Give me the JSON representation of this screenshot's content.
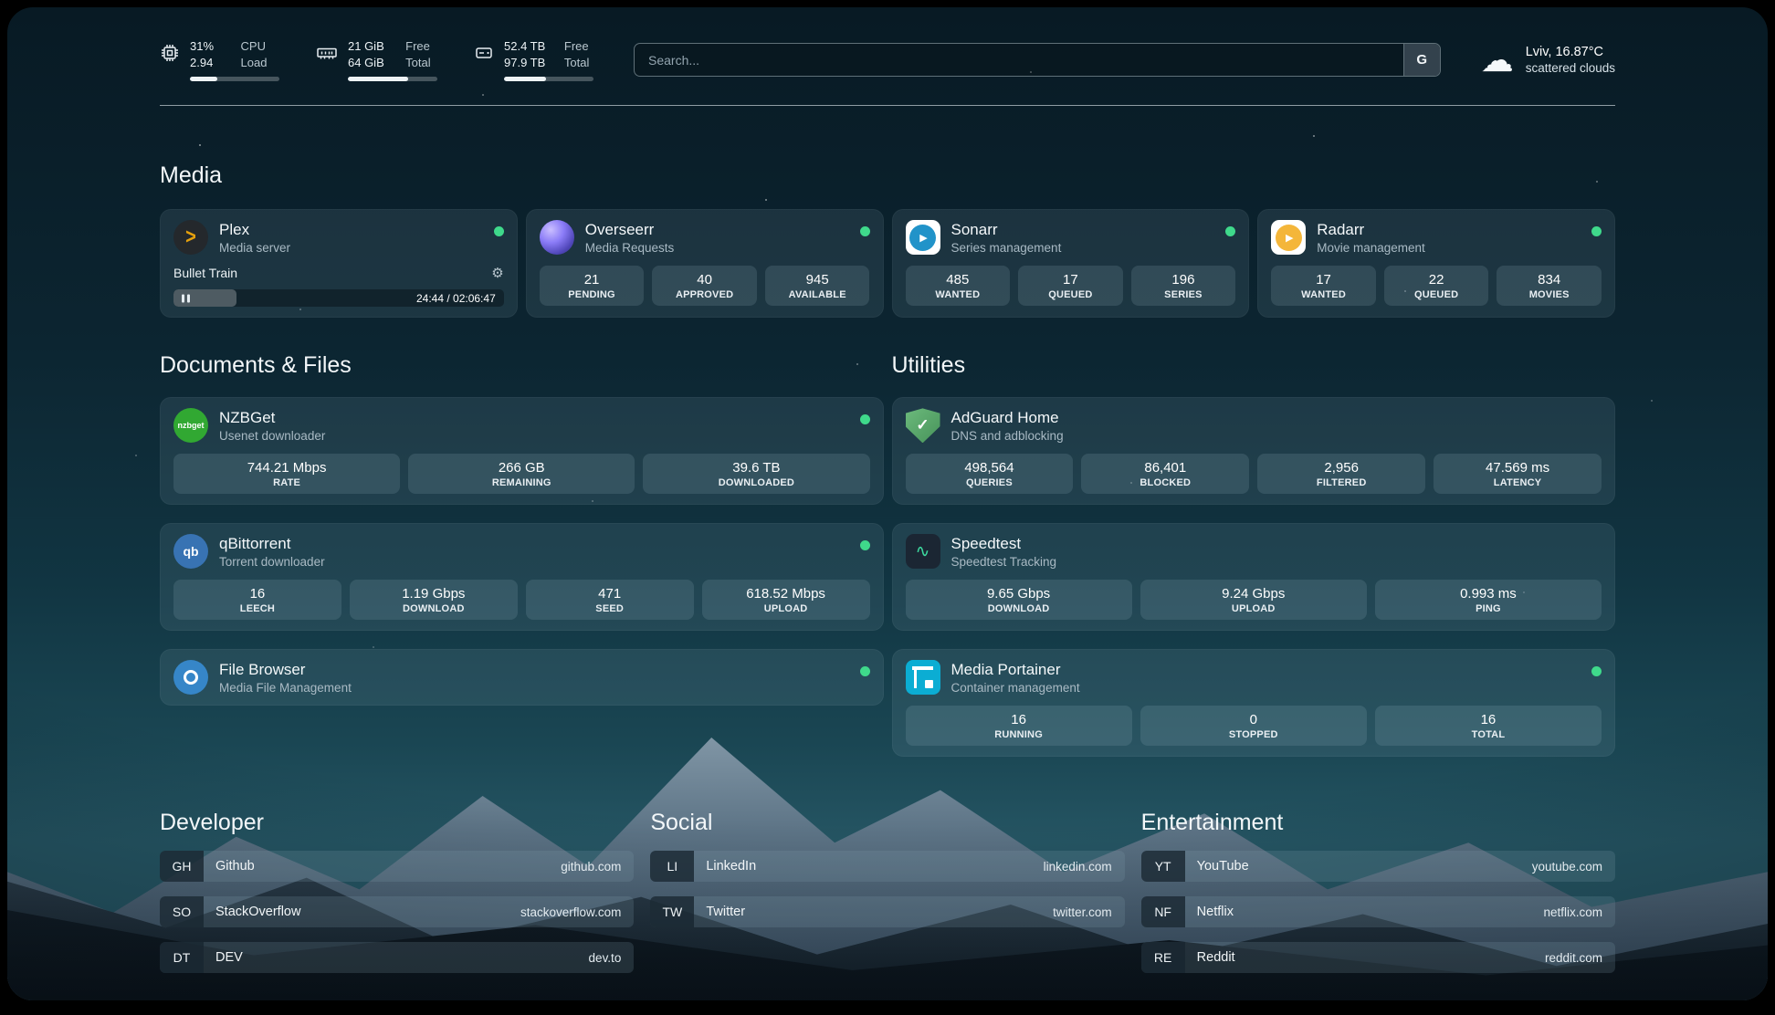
{
  "header": {
    "cpu": {
      "value_top": "31%",
      "label_top": "CPU",
      "value_bottom": "2.94",
      "label_bottom": "Load",
      "bar_percent": 31
    },
    "memory": {
      "value_top": "21 GiB",
      "label_top": "Free",
      "value_bottom": "64 GiB",
      "label_bottom": "Total",
      "bar_percent": 67
    },
    "disk": {
      "value_top": "52.4 TB",
      "label_top": "Free",
      "value_bottom": "97.9 TB",
      "label_bottom": "Total",
      "bar_percent": 47
    },
    "search": {
      "placeholder": "Search...",
      "button_label": "G"
    },
    "weather": {
      "location": "Lviv, 16.87°C",
      "condition": "scattered clouds"
    }
  },
  "colors": {
    "status_online": "#3fd98b",
    "plex_accent": "#e5a00d"
  },
  "groups": {
    "media": {
      "title": "Media",
      "services": [
        {
          "id": "plex",
          "name": "Plex",
          "subtitle": "Media server",
          "online": true,
          "icon": {
            "class": "icon-plex",
            "text": ">"
          },
          "media": {
            "title": "Bullet Train",
            "progress_percent": 19,
            "time": "24:44 / 02:06:47"
          }
        },
        {
          "id": "overseerr",
          "name": "Overseerr",
          "subtitle": "Media Requests",
          "online": true,
          "icon": {
            "class": "icon-overseerr",
            "text": ""
          },
          "stats": [
            {
              "value": "21",
              "label": "PENDING"
            },
            {
              "value": "40",
              "label": "APPROVED"
            },
            {
              "value": "945",
              "label": "AVAILABLE"
            }
          ]
        },
        {
          "id": "sonarr",
          "name": "Sonarr",
          "subtitle": "Series management",
          "online": true,
          "icon": {
            "class": "icon-sonarr",
            "text": "▶"
          },
          "stats": [
            {
              "value": "485",
              "label": "WANTED"
            },
            {
              "value": "17",
              "label": "QUEUED"
            },
            {
              "value": "196",
              "label": "SERIES"
            }
          ]
        },
        {
          "id": "radarr",
          "name": "Radarr",
          "subtitle": "Movie management",
          "online": true,
          "icon": {
            "class": "icon-radarr",
            "text": "▶"
          },
          "stats": [
            {
              "value": "17",
              "label": "WANTED"
            },
            {
              "value": "22",
              "label": "QUEUED"
            },
            {
              "value": "834",
              "label": "MOVIES"
            }
          ]
        }
      ]
    },
    "documents": {
      "title": "Documents & Files",
      "services": [
        {
          "id": "nzbget",
          "name": "NZBGet",
          "subtitle": "Usenet downloader",
          "online": true,
          "icon": {
            "class": "icon-nzbget",
            "text": "nzbget"
          },
          "stats": [
            {
              "value": "744.21 Mbps",
              "label": "RATE"
            },
            {
              "value": "266 GB",
              "label": "REMAINING"
            },
            {
              "value": "39.6 TB",
              "label": "DOWNLOADED"
            }
          ]
        },
        {
          "id": "qbittorrent",
          "name": "qBittorrent",
          "subtitle": "Torrent downloader",
          "online": true,
          "icon": {
            "class": "icon-qbittorrent",
            "text": "qb"
          },
          "stats": [
            {
              "value": "16",
              "label": "LEECH"
            },
            {
              "value": "1.19 Gbps",
              "label": "DOWNLOAD"
            },
            {
              "value": "471",
              "label": "SEED"
            },
            {
              "value": "618.52 Mbps",
              "label": "UPLOAD"
            }
          ]
        },
        {
          "id": "filebrowser",
          "name": "File Browser",
          "subtitle": "Media File Management",
          "online": true,
          "icon": {
            "class": "icon-filebrowser",
            "text": ""
          },
          "stats": []
        }
      ]
    },
    "utilities": {
      "title": "Utilities",
      "services": [
        {
          "id": "adguard",
          "name": "AdGuard Home",
          "subtitle": "DNS and adblocking",
          "online": false,
          "icon": {
            "class": "icon-adguard",
            "text": "✓"
          },
          "stats": [
            {
              "value": "498,564",
              "label": "QUERIES"
            },
            {
              "value": "86,401",
              "label": "BLOCKED"
            },
            {
              "value": "2,956",
              "label": "FILTERED"
            },
            {
              "value": "47.569 ms",
              "label": "LATENCY"
            }
          ]
        },
        {
          "id": "speedtest",
          "name": "Speedtest",
          "subtitle": "Speedtest Tracking",
          "online": false,
          "icon": {
            "class": "icon-speedtest",
            "text": "∿"
          },
          "stats": [
            {
              "value": "9.65 Gbps",
              "label": "DOWNLOAD"
            },
            {
              "value": "9.24 Gbps",
              "label": "UPLOAD"
            },
            {
              "value": "0.993 ms",
              "label": "PING"
            }
          ]
        },
        {
          "id": "portainer",
          "name": "Media Portainer",
          "subtitle": "Container management",
          "online": true,
          "icon": {
            "class": "icon-portainer",
            "text": ""
          },
          "stats": [
            {
              "value": "16",
              "label": "RUNNING"
            },
            {
              "value": "0",
              "label": "STOPPED"
            },
            {
              "value": "16",
              "label": "TOTAL"
            }
          ]
        }
      ]
    }
  },
  "bookmarks": [
    {
      "title": "Developer",
      "items": [
        {
          "abbr": "GH",
          "name": "Github",
          "url": "github.com"
        },
        {
          "abbr": "SO",
          "name": "StackOverflow",
          "url": "stackoverflow.com"
        },
        {
          "abbr": "DT",
          "name": "DEV",
          "url": "dev.to"
        }
      ]
    },
    {
      "title": "Social",
      "items": [
        {
          "abbr": "LI",
          "name": "LinkedIn",
          "url": "linkedin.com"
        },
        {
          "abbr": "TW",
          "name": "Twitter",
          "url": "twitter.com"
        }
      ]
    },
    {
      "title": "Entertainment",
      "items": [
        {
          "abbr": "YT",
          "name": "YouTube",
          "url": "youtube.com"
        },
        {
          "abbr": "NF",
          "name": "Netflix",
          "url": "netflix.com"
        },
        {
          "abbr": "RE",
          "name": "Reddit",
          "url": "reddit.com"
        }
      ]
    }
  ]
}
